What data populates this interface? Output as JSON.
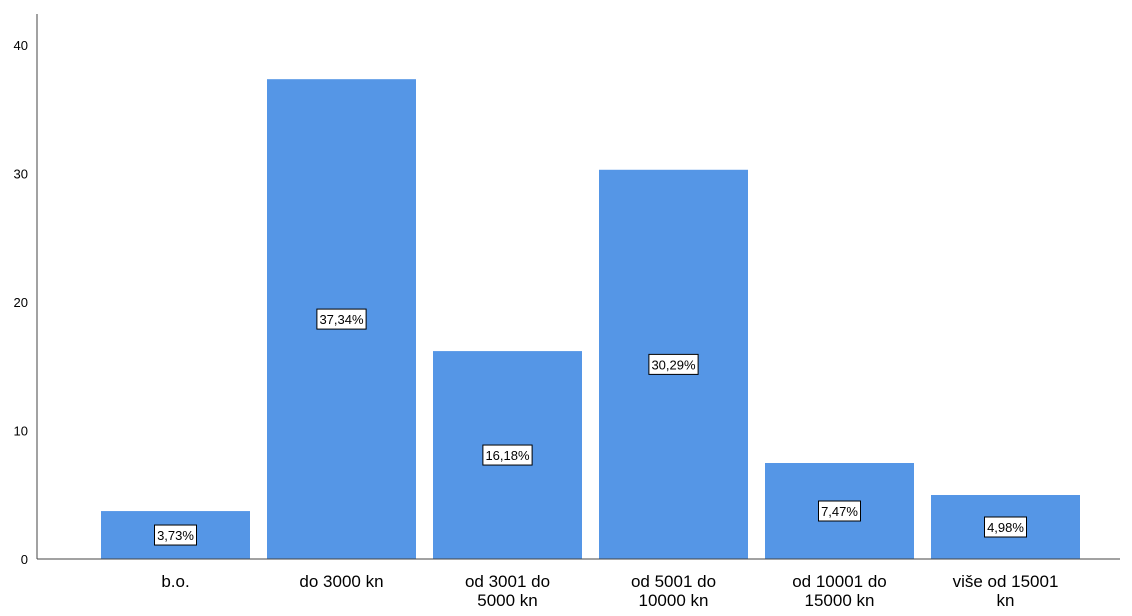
{
  "chart_data": {
    "type": "bar",
    "categories": [
      [
        "b.o."
      ],
      [
        "do 3000 kn"
      ],
      [
        "od 3001 do",
        "5000 kn"
      ],
      [
        "od 5001 do",
        "10000 kn"
      ],
      [
        "od 10001 do",
        "15000 kn"
      ],
      [
        "više od 15001",
        "kn"
      ]
    ],
    "values": [
      3.73,
      37.34,
      16.18,
      30.29,
      7.47,
      4.98
    ],
    "data_labels": [
      "3,73%",
      "37,34%",
      "16,18%",
      "30,29%",
      "7,47%",
      "4,98%"
    ],
    "ylim": [
      0,
      40
    ],
    "yticks": [
      "0",
      "10",
      "20",
      "30",
      "40"
    ],
    "title": "",
    "xlabel": "",
    "ylabel": "",
    "grid": false,
    "bar_color": "#5596e6",
    "axis_color": "#444444"
  }
}
